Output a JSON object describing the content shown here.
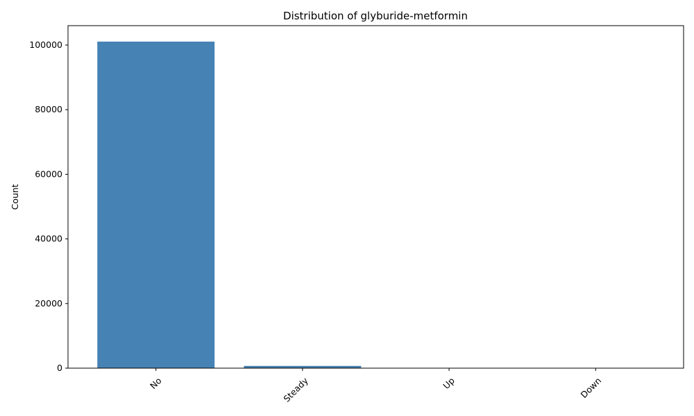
{
  "chart_data": {
    "type": "bar",
    "title": "Distribution of glyburide-metformin",
    "xlabel": "",
    "ylabel": "Count",
    "categories": [
      "No",
      "Steady",
      "Up",
      "Down"
    ],
    "values": [
      101060,
      692,
      8,
      6
    ],
    "ylim": [
      0,
      106000
    ],
    "yticks": [
      0,
      20000,
      40000,
      60000,
      80000,
      100000
    ],
    "bar_color": "#4682b4",
    "grid": false,
    "legend": "none"
  }
}
